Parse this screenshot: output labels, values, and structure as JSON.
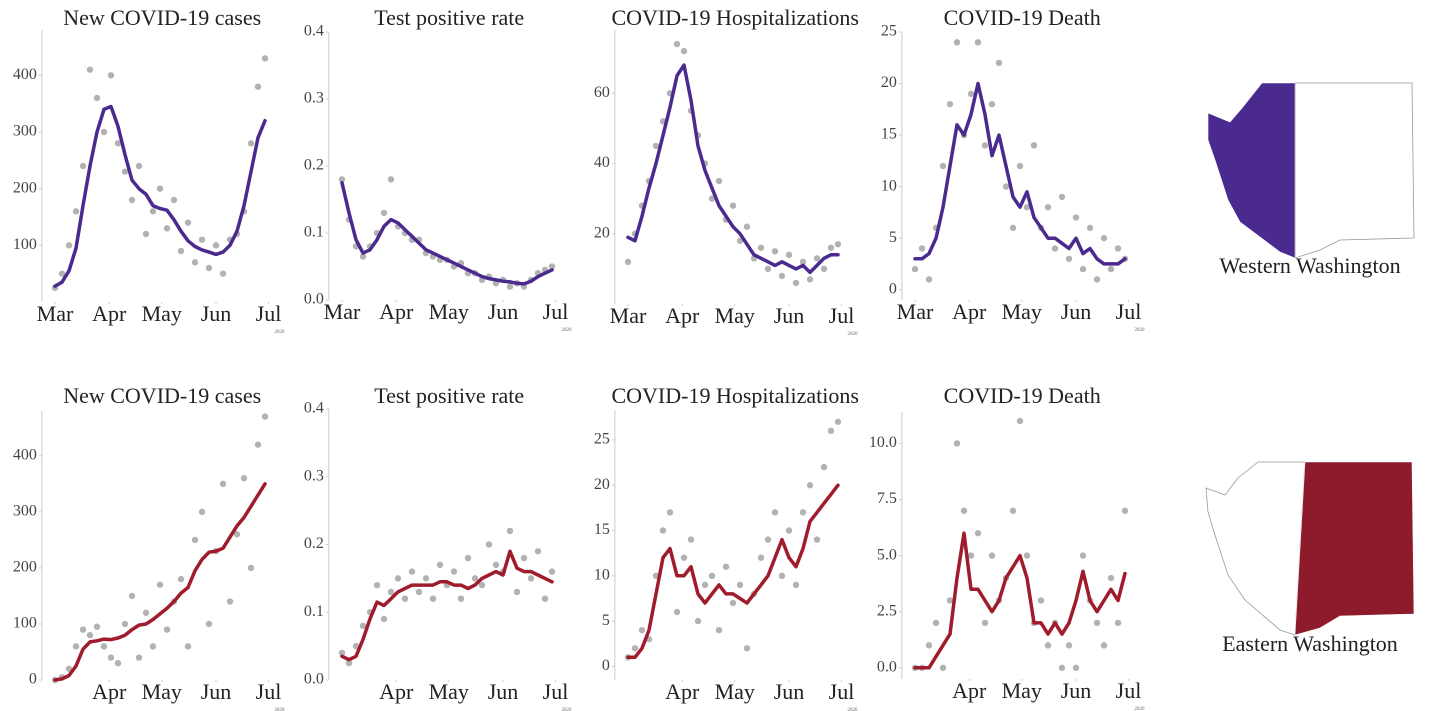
{
  "chart_data": [
    {
      "type": "line",
      "title": "New COVID-19 cases",
      "caption": "2020",
      "xlim": [
        -7.5,
        130
      ],
      "ylim": [
        0,
        480
      ],
      "yticks": [
        100,
        200,
        300,
        400
      ],
      "xticks": [
        {
          "value": 0,
          "label": "Mar"
        },
        {
          "value": 31,
          "label": "Apr"
        },
        {
          "value": 61,
          "label": "May"
        },
        {
          "value": 92,
          "label": "Jun"
        },
        {
          "value": 122,
          "label": "Jul"
        }
      ],
      "x": [
        0,
        4,
        8,
        12,
        16,
        20,
        24,
        28,
        32,
        36,
        40,
        44,
        48,
        52,
        56,
        60,
        64,
        68,
        72,
        76,
        80,
        84,
        88,
        92,
        96,
        100,
        104,
        108,
        112,
        116,
        120
      ],
      "series": [
        {
          "type": "scatter",
          "color": "#555555",
          "values": [
            25,
            50,
            100,
            160,
            240,
            410,
            360,
            300,
            400,
            280,
            230,
            180,
            240,
            120,
            160,
            200,
            130,
            180,
            90,
            140,
            70,
            110,
            60,
            100,
            50,
            110,
            120,
            160,
            280,
            380,
            430
          ]
        },
        {
          "type": "line",
          "color": "#4b2a8f",
          "values": [
            28,
            35,
            55,
            95,
            170,
            240,
            300,
            340,
            345,
            310,
            260,
            215,
            200,
            190,
            170,
            165,
            162,
            145,
            125,
            108,
            98,
            92,
            88,
            84,
            88,
            100,
            125,
            170,
            230,
            290,
            320
          ]
        }
      ]
    },
    {
      "type": "line",
      "title": "Test positive rate",
      "caption": "2020",
      "xlim": [
        -7.5,
        130
      ],
      "ylim": [
        0,
        0.4
      ],
      "yticks": [
        {
          "value": 0,
          "label": "0.0"
        },
        0.1,
        0.2,
        0.3,
        0.4
      ],
      "xticks": [
        {
          "value": 0,
          "label": "Mar"
        },
        {
          "value": 31,
          "label": "Apr"
        },
        {
          "value": 61,
          "label": "May"
        },
        {
          "value": 92,
          "label": "Jun"
        },
        {
          "value": 122,
          "label": "Jul"
        }
      ],
      "x": [
        0,
        4,
        8,
        12,
        16,
        20,
        24,
        28,
        32,
        36,
        40,
        44,
        48,
        52,
        56,
        60,
        64,
        68,
        72,
        76,
        80,
        84,
        88,
        92,
        96,
        100,
        104,
        108,
        112,
        116,
        120
      ],
      "series": [
        {
          "type": "scatter",
          "color": "#555555",
          "values": [
            0.18,
            0.12,
            0.08,
            0.065,
            0.08,
            0.1,
            0.13,
            0.18,
            0.11,
            0.1,
            0.09,
            0.09,
            0.07,
            0.065,
            0.06,
            0.06,
            0.05,
            0.055,
            0.04,
            0.04,
            0.03,
            0.035,
            0.025,
            0.03,
            0.02,
            0.025,
            0.02,
            0.03,
            0.04,
            0.045,
            0.05
          ]
        },
        {
          "type": "line",
          "color": "#4b2a8f",
          "values": [
            0.175,
            0.13,
            0.09,
            0.07,
            0.075,
            0.09,
            0.11,
            0.12,
            0.115,
            0.105,
            0.095,
            0.085,
            0.075,
            0.07,
            0.065,
            0.06,
            0.055,
            0.05,
            0.045,
            0.04,
            0.035,
            0.032,
            0.03,
            0.028,
            0.027,
            0.025,
            0.024,
            0.028,
            0.035,
            0.04,
            0.045
          ]
        }
      ]
    },
    {
      "type": "line",
      "title": "COVID-19 Hospitalizations",
      "caption": "2020",
      "xlim": [
        -7.5,
        130
      ],
      "ylim": [
        0,
        78
      ],
      "yticks": [
        20,
        40,
        60
      ],
      "xticks": [
        {
          "value": 0,
          "label": "Mar"
        },
        {
          "value": 31,
          "label": "Apr"
        },
        {
          "value": 61,
          "label": "May"
        },
        {
          "value": 92,
          "label": "Jun"
        },
        {
          "value": 122,
          "label": "Jul"
        }
      ],
      "x": [
        0,
        4,
        8,
        12,
        16,
        20,
        24,
        28,
        32,
        36,
        40,
        44,
        48,
        52,
        56,
        60,
        64,
        68,
        72,
        76,
        80,
        84,
        88,
        92,
        96,
        100,
        104,
        108,
        112,
        116,
        120
      ],
      "series": [
        {
          "type": "scatter",
          "color": "#555555",
          "values": [
            12,
            20,
            28,
            35,
            45,
            52,
            60,
            74,
            72,
            55,
            48,
            40,
            30,
            35,
            24,
            28,
            18,
            22,
            13,
            16,
            10,
            15,
            8,
            14,
            6,
            12,
            7,
            13,
            10,
            16,
            17
          ]
        },
        {
          "type": "line",
          "color": "#4b2a8f",
          "values": [
            19,
            18,
            25,
            33,
            40,
            48,
            56,
            65,
            68,
            58,
            45,
            38,
            33,
            28,
            25,
            22,
            20,
            17,
            14,
            13,
            12,
            11,
            12,
            11,
            10,
            11,
            9,
            11,
            13,
            14,
            14
          ]
        }
      ]
    },
    {
      "type": "line",
      "title": "COVID-19 Death",
      "caption": "2020",
      "xlim": [
        -7.5,
        130
      ],
      "ylim": [
        -1,
        25
      ],
      "yticks": [
        0,
        5,
        10,
        15,
        20,
        25
      ],
      "xticks": [
        {
          "value": 0,
          "label": "Mar"
        },
        {
          "value": 31,
          "label": "Apr"
        },
        {
          "value": 61,
          "label": "May"
        },
        {
          "value": 92,
          "label": "Jun"
        },
        {
          "value": 122,
          "label": "Jul"
        }
      ],
      "x": [
        0,
        4,
        8,
        12,
        16,
        20,
        24,
        28,
        32,
        36,
        40,
        44,
        48,
        52,
        56,
        60,
        64,
        68,
        72,
        76,
        80,
        84,
        88,
        92,
        96,
        100,
        104,
        108,
        112,
        116,
        120
      ],
      "series": [
        {
          "type": "scatter",
          "color": "#555555",
          "values": [
            2,
            4,
            1,
            6,
            12,
            18,
            24,
            15,
            19,
            24,
            14,
            18,
            22,
            10,
            6,
            12,
            8,
            14,
            6,
            8,
            4,
            9,
            3,
            7,
            2,
            6,
            1,
            5,
            2,
            4,
            3
          ]
        },
        {
          "type": "line",
          "color": "#4b2a8f",
          "values": [
            3,
            3,
            3.5,
            5,
            8,
            12,
            16,
            15,
            17,
            20,
            17,
            13,
            15,
            12,
            9,
            8,
            9.5,
            7,
            6,
            5,
            5,
            4.5,
            4,
            5,
            3.5,
            4,
            3,
            2.5,
            2.5,
            2.5,
            3
          ]
        }
      ]
    },
    {
      "type": "line",
      "title": "New COVID-19 cases",
      "caption": "2020",
      "xlim": [
        -7.5,
        130
      ],
      "ylim": [
        0,
        480
      ],
      "yticks": [
        0,
        100,
        200,
        300,
        400
      ],
      "xticks": [
        {
          "value": 31,
          "label": "Apr"
        },
        {
          "value": 61,
          "label": "May"
        },
        {
          "value": 92,
          "label": "Jun"
        },
        {
          "value": 122,
          "label": "Jul"
        }
      ],
      "x": [
        0,
        4,
        8,
        12,
        16,
        20,
        24,
        28,
        32,
        36,
        40,
        44,
        48,
        52,
        56,
        60,
        64,
        68,
        72,
        76,
        80,
        84,
        88,
        92,
        96,
        100,
        104,
        108,
        112,
        116,
        120
      ],
      "series": [
        {
          "type": "scatter",
          "color": "#555555",
          "values": [
            0,
            5,
            20,
            60,
            90,
            80,
            95,
            60,
            40,
            30,
            100,
            150,
            40,
            120,
            60,
            170,
            90,
            140,
            180,
            60,
            250,
            300,
            100,
            230,
            350,
            140,
            260,
            360,
            200,
            420,
            470
          ]
        },
        {
          "type": "line",
          "color": "#a01c2c",
          "values": [
            0,
            2,
            8,
            25,
            55,
            68,
            70,
            73,
            72,
            75,
            80,
            90,
            98,
            100,
            108,
            118,
            128,
            140,
            155,
            165,
            195,
            215,
            228,
            230,
            235,
            255,
            275,
            290,
            310,
            330,
            350
          ]
        }
      ]
    },
    {
      "type": "line",
      "title": "Test positive rate",
      "caption": "2020",
      "xlim": [
        -7.5,
        130
      ],
      "ylim": [
        0,
        0.4
      ],
      "yticks": [
        {
          "value": 0,
          "label": "0.0"
        },
        0.1,
        0.2,
        0.3,
        0.4
      ],
      "xticks": [
        {
          "value": 31,
          "label": "Apr"
        },
        {
          "value": 61,
          "label": "May"
        },
        {
          "value": 92,
          "label": "Jun"
        },
        {
          "value": 122,
          "label": "Jul"
        }
      ],
      "x": [
        0,
        4,
        8,
        12,
        16,
        20,
        24,
        28,
        32,
        36,
        40,
        44,
        48,
        52,
        56,
        60,
        64,
        68,
        72,
        76,
        80,
        84,
        88,
        92,
        96,
        100,
        104,
        108,
        112,
        116,
        120
      ],
      "series": [
        {
          "type": "scatter",
          "color": "#555555",
          "values": [
            0.04,
            0.025,
            0.05,
            0.08,
            0.1,
            0.14,
            0.09,
            0.13,
            0.15,
            0.12,
            0.16,
            0.13,
            0.15,
            0.12,
            0.17,
            0.14,
            0.16,
            0.12,
            0.18,
            0.15,
            0.14,
            0.2,
            0.17,
            0.16,
            0.22,
            0.13,
            0.18,
            0.15,
            0.19,
            0.12,
            0.16
          ]
        },
        {
          "type": "line",
          "color": "#a01c2c",
          "values": [
            0.035,
            0.03,
            0.035,
            0.06,
            0.09,
            0.115,
            0.11,
            0.12,
            0.13,
            0.135,
            0.14,
            0.14,
            0.14,
            0.14,
            0.145,
            0.145,
            0.14,
            0.14,
            0.135,
            0.14,
            0.15,
            0.155,
            0.16,
            0.155,
            0.19,
            0.165,
            0.16,
            0.16,
            0.155,
            0.15,
            0.145
          ]
        }
      ]
    },
    {
      "type": "line",
      "title": "COVID-19 Hospitalizations",
      "caption": "2020",
      "xlim": [
        -7.5,
        130
      ],
      "ylim": [
        -1.5,
        28.3
      ],
      "yticks": [
        0,
        5,
        10,
        15,
        20,
        25
      ],
      "xticks": [
        {
          "value": 31,
          "label": "Apr"
        },
        {
          "value": 61,
          "label": "May"
        },
        {
          "value": 92,
          "label": "Jun"
        },
        {
          "value": 122,
          "label": "Jul"
        }
      ],
      "x": [
        0,
        4,
        8,
        12,
        16,
        20,
        24,
        28,
        32,
        36,
        40,
        44,
        48,
        52,
        56,
        60,
        64,
        68,
        72,
        76,
        80,
        84,
        88,
        92,
        96,
        100,
        104,
        108,
        112,
        116,
        120
      ],
      "series": [
        {
          "type": "scatter",
          "color": "#555555",
          "values": [
            1,
            2,
            4,
            3,
            10,
            15,
            17,
            6,
            12,
            14,
            5,
            9,
            10,
            4,
            11,
            7,
            9,
            2,
            8,
            12,
            14,
            17,
            10,
            15,
            9,
            17,
            20,
            14,
            22,
            26,
            27
          ]
        },
        {
          "type": "line",
          "color": "#a01c2c",
          "values": [
            1,
            1,
            2,
            4,
            8,
            12,
            13,
            10,
            10,
            11,
            8,
            7,
            8,
            9,
            8,
            8,
            7.5,
            7,
            8,
            9,
            10,
            12,
            14,
            12,
            11,
            13,
            16,
            17,
            18,
            19,
            20
          ]
        }
      ]
    },
    {
      "type": "line",
      "title": "COVID-19 Death",
      "caption": "2020",
      "xlim": [
        -7.5,
        130
      ],
      "ylim": [
        -0.5,
        11.4
      ],
      "yticks": [
        {
          "value": 0,
          "label": "0.0"
        },
        2.5,
        {
          "value": 5,
          "label": "5.0"
        },
        7.5,
        {
          "value": 10,
          "label": "10.0"
        }
      ],
      "xticks": [
        {
          "value": 31,
          "label": "Apr"
        },
        {
          "value": 61,
          "label": "May"
        },
        {
          "value": 92,
          "label": "Jun"
        },
        {
          "value": 122,
          "label": "Jul"
        }
      ],
      "x": [
        0,
        4,
        8,
        12,
        16,
        20,
        24,
        28,
        32,
        36,
        40,
        44,
        48,
        52,
        56,
        60,
        64,
        68,
        72,
        76,
        80,
        84,
        88,
        92,
        96,
        100,
        104,
        108,
        112,
        116,
        120
      ],
      "series": [
        {
          "type": "scatter",
          "color": "#555555",
          "values": [
            0,
            0,
            1,
            2,
            0,
            3,
            10,
            7,
            5,
            6,
            2,
            5,
            3,
            4,
            7,
            11,
            5,
            2,
            3,
            1,
            2,
            0,
            1,
            0,
            5,
            3,
            2,
            1,
            4,
            2,
            7
          ]
        },
        {
          "type": "line",
          "color": "#a01c2c",
          "values": [
            0,
            0,
            0,
            0.5,
            1,
            1.5,
            4,
            6,
            3.5,
            3.5,
            3,
            2.5,
            3,
            4,
            4.5,
            5,
            4,
            2,
            2,
            1.5,
            2,
            1.5,
            2,
            3,
            4.3,
            3,
            2.5,
            3,
            3.5,
            3,
            4.2
          ]
        }
      ]
    }
  ],
  "maps": [
    {
      "label": "Western Washington",
      "color": "#4b2a8f"
    },
    {
      "label": "Eastern Washington",
      "color": "#8e1b2c"
    }
  ]
}
